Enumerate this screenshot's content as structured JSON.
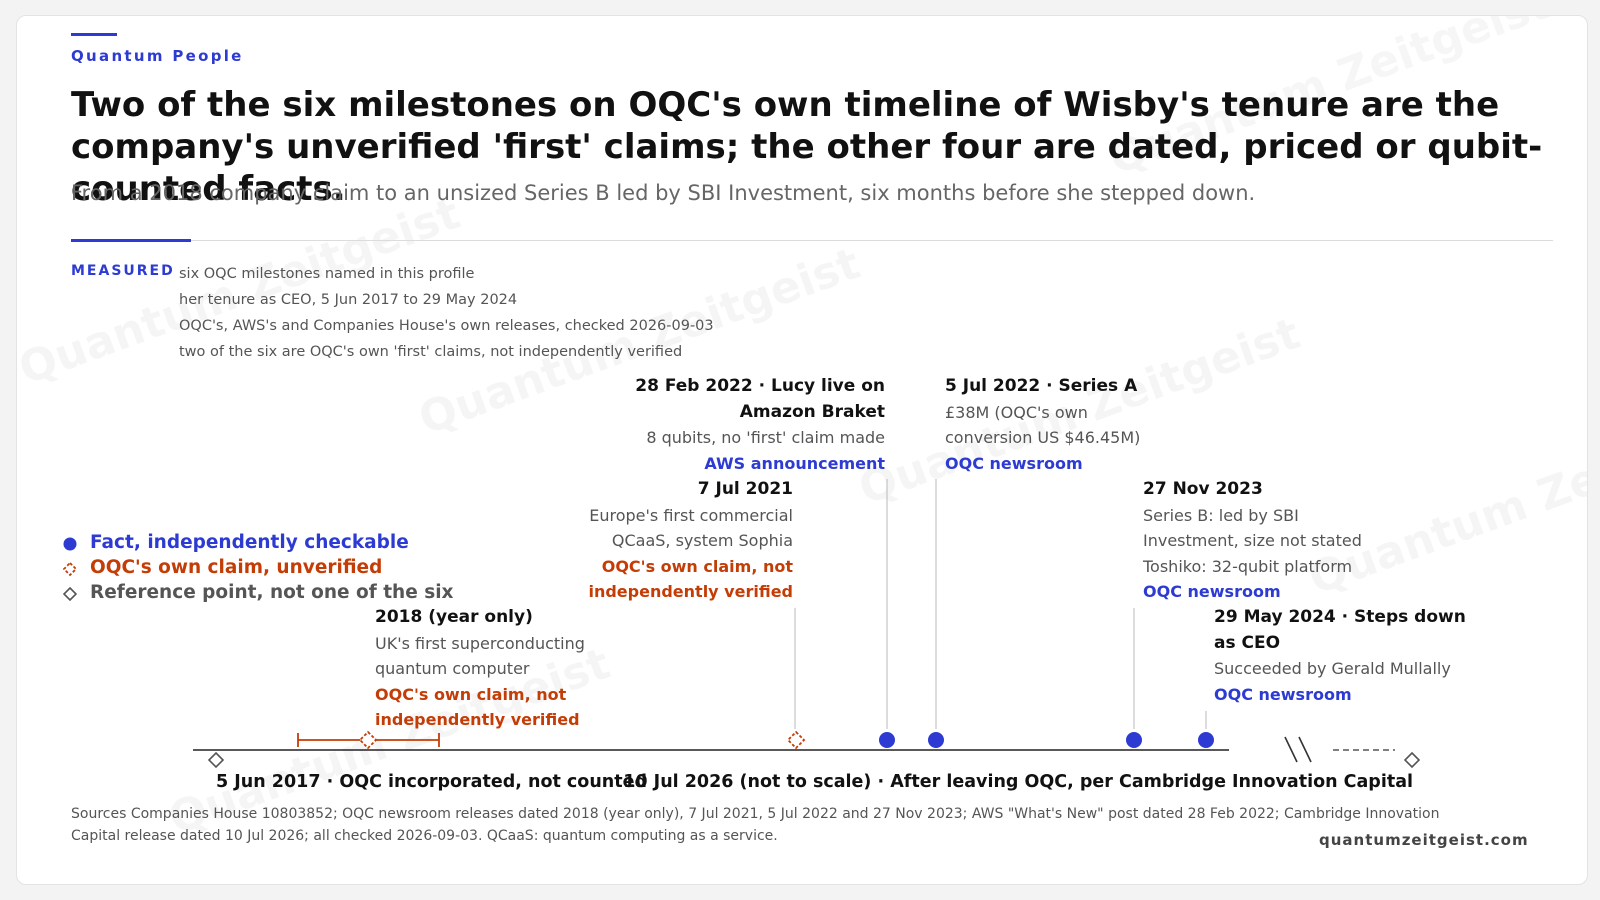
{
  "kicker": "Quantum People",
  "title": "Two of the six milestones on OQC's own timeline of Wisby's tenure are the company's unverified 'first' claims; the other four are dated, priced or qubit-counted facts.",
  "subtitle": "From a 2018 company claim to an unsized Series B led by SBI Investment, six months before she stepped down.",
  "measured": {
    "label": "MEASURED",
    "lines": [
      "six OQC milestones named in this profile",
      "her tenure as CEO, 5 Jun 2017 to 29 May 2024",
      "OQC's, AWS's and Companies House's own releases, checked 2026-09-03",
      "two of the six are OQC's own 'first' claims, not independently verified"
    ]
  },
  "legend": [
    {
      "label": "Fact, independently checkable",
      "color": "#2d3bd2",
      "marker": "filled-circle-icon"
    },
    {
      "label": "OQC's own claim, unverified",
      "color": "#c43d06",
      "marker": "dashed-diamond-icon"
    },
    {
      "label": "Reference point, not one of the six",
      "color": "#555555",
      "marker": "hollow-diamond-icon"
    }
  ],
  "milestones": {
    "m2018": {
      "heading": "2018 (year only)",
      "lines": [
        "UK's first superconducting",
        "quantum computer"
      ],
      "claim": [
        "OQC's own claim, not",
        "independently verified"
      ]
    },
    "m2021": {
      "heading": "7 Jul 2021",
      "lines": [
        "Europe's first commercial",
        "QCaaS, system Sophia"
      ],
      "claim": [
        "OQC's own claim, not",
        "independently verified"
      ]
    },
    "m2022feb": {
      "heading": [
        "28 Feb 2022 · Lucy live on",
        "Amazon Braket"
      ],
      "lines": [
        "8 qubits, no 'first' claim made"
      ],
      "source": "AWS announcement"
    },
    "m2022jul": {
      "heading": "5 Jul 2022 · Series A",
      "lines": [
        "£38M (OQC's own",
        "conversion US $46.45M)"
      ],
      "source": "OQC newsroom"
    },
    "m2023": {
      "heading": "27 Nov 2023",
      "lines": [
        "Series B: led by SBI",
        "Investment, size not stated",
        "Toshiko: 32-qubit platform"
      ],
      "source": "OQC newsroom"
    },
    "m2024": {
      "heading": [
        "29 May 2024 · Steps down",
        "as CEO"
      ],
      "lines": [
        "Succeeded by Gerald Mullally"
      ],
      "source": "OQC newsroom"
    }
  },
  "axis": {
    "start_label": "5 Jun 2017 · OQC incorporated, not counted",
    "end_label": "10 Jul 2026 (not to scale) · After leaving OQC, per Cambridge Innovation Capital"
  },
  "colors": {
    "fact": "#2d3bd2",
    "claim": "#c43d06",
    "reference": "#555555",
    "axis": "#222222"
  },
  "sources": "Sources Companies House 10803852; OQC newsroom releases dated 2018 (year only), 7 Jul 2021, 5 Jul 2022 and 27 Nov 2023; AWS \"What's New\" post dated 28 Feb 2022; Cambridge Innovation Capital release dated 10 Jul 2026; all checked 2026-09-03. QCaaS: quantum computing as a service.",
  "site": "quantumzeitgeist.com",
  "watermark": "Quantum Zeitgeist"
}
